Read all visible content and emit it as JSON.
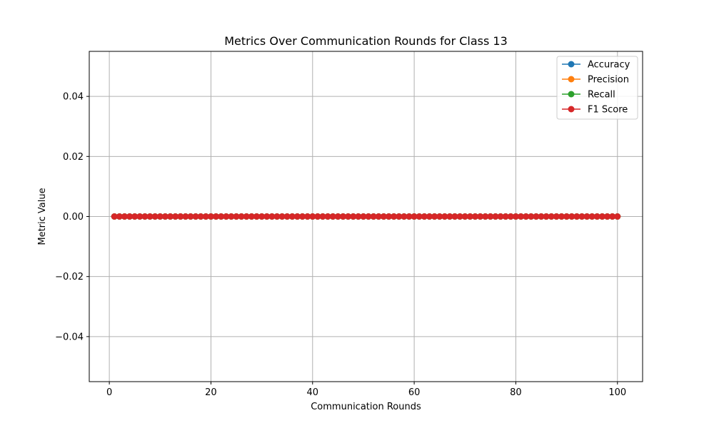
{
  "chart_data": {
    "type": "line",
    "title": "Metrics Over Communication Rounds for Class 13",
    "xlabel": "Communication Rounds",
    "ylabel": "Metric Value",
    "xlim": [
      -3.95,
      104.95
    ],
    "ylim": [
      -0.055,
      0.055
    ],
    "x_ticks": [
      0,
      20,
      40,
      60,
      80,
      100
    ],
    "x_tick_labels": [
      "0",
      "20",
      "40",
      "60",
      "80",
      "100"
    ],
    "y_ticks": [
      -0.04,
      -0.02,
      0.0,
      0.02,
      0.04
    ],
    "y_tick_labels": [
      "−0.04",
      "−0.02",
      "0.00",
      "0.02",
      "0.04"
    ],
    "grid": true,
    "legend_position": "top-right",
    "x": [
      1,
      2,
      3,
      4,
      5,
      6,
      7,
      8,
      9,
      10,
      11,
      12,
      13,
      14,
      15,
      16,
      17,
      18,
      19,
      20,
      21,
      22,
      23,
      24,
      25,
      26,
      27,
      28,
      29,
      30,
      31,
      32,
      33,
      34,
      35,
      36,
      37,
      38,
      39,
      40,
      41,
      42,
      43,
      44,
      45,
      46,
      47,
      48,
      49,
      50,
      51,
      52,
      53,
      54,
      55,
      56,
      57,
      58,
      59,
      60,
      61,
      62,
      63,
      64,
      65,
      66,
      67,
      68,
      69,
      70,
      71,
      72,
      73,
      74,
      75,
      76,
      77,
      78,
      79,
      80,
      81,
      82,
      83,
      84,
      85,
      86,
      87,
      88,
      89,
      90,
      91,
      92,
      93,
      94,
      95,
      96,
      97,
      98,
      99,
      100
    ],
    "series": [
      {
        "name": "Accuracy",
        "color": "#1f77b4",
        "values": [
          0,
          0,
          0,
          0,
          0,
          0,
          0,
          0,
          0,
          0,
          0,
          0,
          0,
          0,
          0,
          0,
          0,
          0,
          0,
          0,
          0,
          0,
          0,
          0,
          0,
          0,
          0,
          0,
          0,
          0,
          0,
          0,
          0,
          0,
          0,
          0,
          0,
          0,
          0,
          0,
          0,
          0,
          0,
          0,
          0,
          0,
          0,
          0,
          0,
          0,
          0,
          0,
          0,
          0,
          0,
          0,
          0,
          0,
          0,
          0,
          0,
          0,
          0,
          0,
          0,
          0,
          0,
          0,
          0,
          0,
          0,
          0,
          0,
          0,
          0,
          0,
          0,
          0,
          0,
          0,
          0,
          0,
          0,
          0,
          0,
          0,
          0,
          0,
          0,
          0,
          0,
          0,
          0,
          0,
          0,
          0,
          0,
          0,
          0,
          0
        ]
      },
      {
        "name": "Precision",
        "color": "#ff7f0e",
        "values": [
          0,
          0,
          0,
          0,
          0,
          0,
          0,
          0,
          0,
          0,
          0,
          0,
          0,
          0,
          0,
          0,
          0,
          0,
          0,
          0,
          0,
          0,
          0,
          0,
          0,
          0,
          0,
          0,
          0,
          0,
          0,
          0,
          0,
          0,
          0,
          0,
          0,
          0,
          0,
          0,
          0,
          0,
          0,
          0,
          0,
          0,
          0,
          0,
          0,
          0,
          0,
          0,
          0,
          0,
          0,
          0,
          0,
          0,
          0,
          0,
          0,
          0,
          0,
          0,
          0,
          0,
          0,
          0,
          0,
          0,
          0,
          0,
          0,
          0,
          0,
          0,
          0,
          0,
          0,
          0,
          0,
          0,
          0,
          0,
          0,
          0,
          0,
          0,
          0,
          0,
          0,
          0,
          0,
          0,
          0,
          0,
          0,
          0,
          0,
          0
        ]
      },
      {
        "name": "Recall",
        "color": "#2ca02c",
        "values": [
          0,
          0,
          0,
          0,
          0,
          0,
          0,
          0,
          0,
          0,
          0,
          0,
          0,
          0,
          0,
          0,
          0,
          0,
          0,
          0,
          0,
          0,
          0,
          0,
          0,
          0,
          0,
          0,
          0,
          0,
          0,
          0,
          0,
          0,
          0,
          0,
          0,
          0,
          0,
          0,
          0,
          0,
          0,
          0,
          0,
          0,
          0,
          0,
          0,
          0,
          0,
          0,
          0,
          0,
          0,
          0,
          0,
          0,
          0,
          0,
          0,
          0,
          0,
          0,
          0,
          0,
          0,
          0,
          0,
          0,
          0,
          0,
          0,
          0,
          0,
          0,
          0,
          0,
          0,
          0,
          0,
          0,
          0,
          0,
          0,
          0,
          0,
          0,
          0,
          0,
          0,
          0,
          0,
          0,
          0,
          0,
          0,
          0,
          0,
          0
        ]
      },
      {
        "name": "F1 Score",
        "color": "#d62728",
        "values": [
          0,
          0,
          0,
          0,
          0,
          0,
          0,
          0,
          0,
          0,
          0,
          0,
          0,
          0,
          0,
          0,
          0,
          0,
          0,
          0,
          0,
          0,
          0,
          0,
          0,
          0,
          0,
          0,
          0,
          0,
          0,
          0,
          0,
          0,
          0,
          0,
          0,
          0,
          0,
          0,
          0,
          0,
          0,
          0,
          0,
          0,
          0,
          0,
          0,
          0,
          0,
          0,
          0,
          0,
          0,
          0,
          0,
          0,
          0,
          0,
          0,
          0,
          0,
          0,
          0,
          0,
          0,
          0,
          0,
          0,
          0,
          0,
          0,
          0,
          0,
          0,
          0,
          0,
          0,
          0,
          0,
          0,
          0,
          0,
          0,
          0,
          0,
          0,
          0,
          0,
          0,
          0,
          0,
          0,
          0,
          0,
          0,
          0,
          0,
          0
        ]
      }
    ]
  }
}
